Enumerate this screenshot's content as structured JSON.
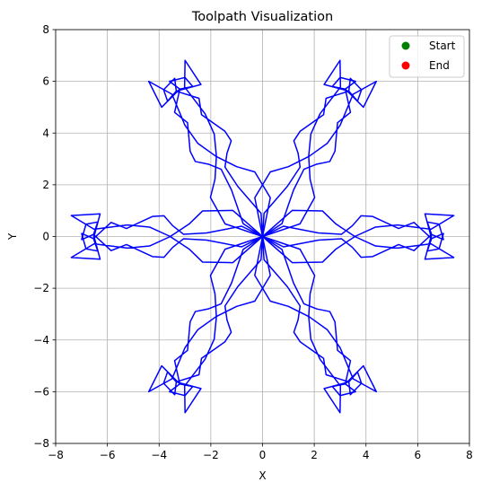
{
  "chart_data": {
    "type": "line",
    "title": "Toolpath Visualization",
    "xlabel": "X",
    "ylabel": "Y",
    "xlim": [
      -8,
      8
    ],
    "ylim": [
      -8,
      8
    ],
    "xticks": [
      -8,
      -6,
      -4,
      -2,
      0,
      2,
      4,
      6,
      8
    ],
    "yticks": [
      -8,
      -6,
      -4,
      -2,
      0,
      2,
      4,
      6,
      8
    ],
    "grid": true,
    "legend_position": "top-right",
    "legend": [
      {
        "name": "Start",
        "color": "#008000"
      },
      {
        "name": "End",
        "color": "#ff0000"
      }
    ],
    "series": [
      {
        "type": "line",
        "color": "#0000ff",
        "symmetry": "6-fold rotational with mirror",
        "x": [
          0.0,
          0.75,
          1.2,
          1.6,
          2.1,
          2.6,
          2.8,
          2.9,
          3.4,
          3.2,
          3.6,
          3.0,
          2.7,
          3.2,
          3.9,
          4.4,
          3.5,
          3.0,
          2.5,
          1.8,
          1.0,
          0.3,
          -0.3,
          0.0
        ],
        "y": [
          0.0,
          0.5,
          1.8,
          2.6,
          2.8,
          2.9,
          3.3,
          4.4,
          4.8,
          5.7,
          6.0,
          6.15,
          5.8,
          5.7,
          5.0,
          6.0,
          5.5,
          4.3,
          3.6,
          3.1,
          2.7,
          2.5,
          1.5,
          0.0
        ]
      },
      {
        "type": "scatter",
        "name": "Start",
        "color": "#008000",
        "x": [],
        "y": []
      },
      {
        "type": "scatter",
        "name": "End",
        "color": "#ff0000",
        "x": [],
        "y": []
      }
    ]
  }
}
